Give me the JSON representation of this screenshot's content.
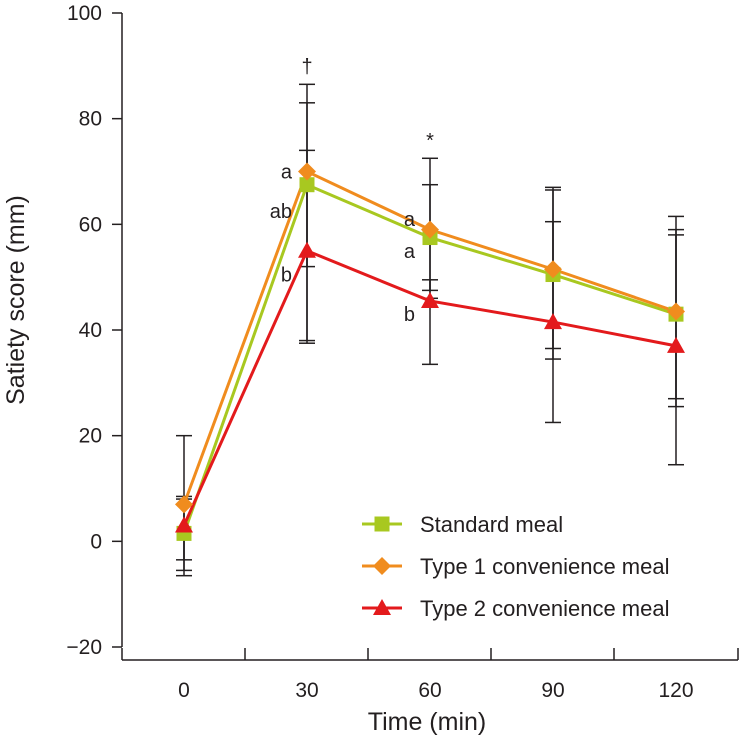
{
  "chart_data": {
    "type": "line",
    "title": "",
    "xlabel": "Time (min)",
    "ylabel": "Satiety score (mm)",
    "x": [
      0,
      30,
      60,
      90,
      120
    ],
    "x_tick_labels": [
      "0",
      "30",
      "60",
      "90",
      "120"
    ],
    "ylim": [
      -20,
      100
    ],
    "y_ticks": [
      -20,
      0,
      20,
      40,
      60,
      80,
      100
    ],
    "y_tick_labels": [
      "−20",
      "0",
      "20",
      "40",
      "60",
      "80",
      "100"
    ],
    "grid": false,
    "legend_position": "bottom-right",
    "series": [
      {
        "name": "Standard meal",
        "color": "#a8c820",
        "marker": "square",
        "values": [
          1.5,
          67.5,
          57.5,
          50.5,
          43
        ],
        "error_upper": [
          8.5,
          83,
          67.5,
          66.5,
          59
        ],
        "error_lower": [
          -5.5,
          52,
          47.5,
          34.5,
          27
        ]
      },
      {
        "name": "Type 1 convenience meal",
        "color": "#f08c1e",
        "marker": "diamond",
        "values": [
          7,
          70,
          59,
          51.5,
          43.5
        ],
        "error_upper": [
          20,
          86.5,
          72.5,
          67,
          61.5
        ],
        "error_lower": [
          -6.5,
          37.5,
          46,
          36.5,
          25.5
        ]
      },
      {
        "name": "Type 2 convenience meal",
        "color": "#e31a1c",
        "marker": "triangle",
        "values": [
          3,
          55,
          45.5,
          41.5,
          37
        ],
        "error_upper": [
          8,
          74,
          49.5,
          60.5,
          58
        ],
        "error_lower": [
          -3.5,
          38,
          33.5,
          22.5,
          14.5
        ]
      }
    ],
    "annotations": [
      {
        "text": "†",
        "x": 30,
        "y": 90
      },
      {
        "text": "*",
        "x": 60,
        "y": 76
      },
      {
        "text": "a",
        "x": 30,
        "y": 70,
        "anchor": "left"
      },
      {
        "text": "ab",
        "x": 30,
        "y": 62.5,
        "anchor": "left"
      },
      {
        "text": "b",
        "x": 30,
        "y": 50.5,
        "anchor": "left"
      },
      {
        "text": "a",
        "x": 60,
        "y": 61,
        "anchor": "left"
      },
      {
        "text": "a",
        "x": 60,
        "y": 55,
        "anchor": "left"
      },
      {
        "text": "b",
        "x": 60,
        "y": 43,
        "anchor": "left"
      }
    ]
  }
}
